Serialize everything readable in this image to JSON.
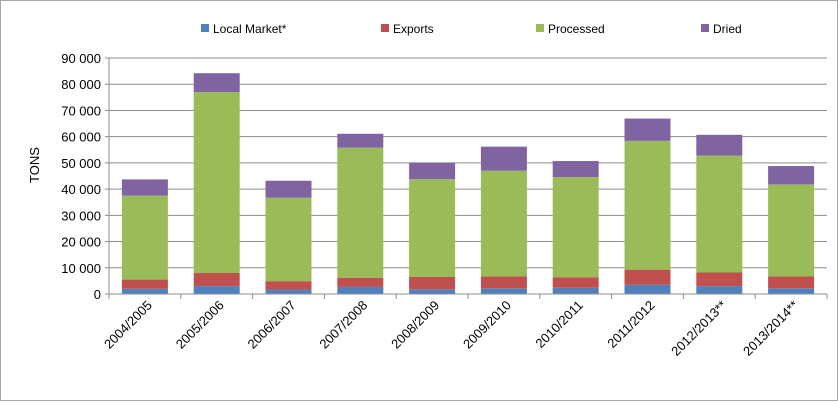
{
  "chart_data": {
    "type": "bar",
    "stacked": true,
    "ylabel": "TONS",
    "ylim": [
      0,
      90000
    ],
    "y_ticks": [
      "0",
      "10 000",
      "20 000",
      "30 000",
      "40 000",
      "50 000",
      "60 000",
      "70 000",
      "80 000",
      "90 000"
    ],
    "y_tick_values": [
      0,
      10000,
      20000,
      30000,
      40000,
      50000,
      60000,
      70000,
      80000,
      90000
    ],
    "grid": true,
    "legend_position": "top",
    "categories": [
      "2004/2005",
      "2005/2006",
      "2006/2007",
      "2007/2008",
      "2008/2009",
      "2009/2010",
      "2010/2011",
      "2011/2012",
      "2012/2013**",
      "2013/2014**"
    ],
    "series": [
      {
        "name": "Local Market*",
        "color": "#4f81bd",
        "values": [
          2000,
          3000,
          1700,
          2700,
          1800,
          2200,
          2400,
          3500,
          3000,
          2200
        ]
      },
      {
        "name": "Exports",
        "color": "#c0504d",
        "values": [
          3500,
          5000,
          3200,
          3500,
          4700,
          4500,
          4000,
          5800,
          5200,
          4500
        ]
      },
      {
        "name": "Processed",
        "color": "#9bbb59",
        "values": [
          32000,
          69000,
          31800,
          49600,
          37300,
          40300,
          38200,
          49100,
          44600,
          35100
        ]
      },
      {
        "name": "Dried",
        "color": "#8064a2",
        "values": [
          6200,
          7200,
          6500,
          5300,
          6200,
          9200,
          6100,
          8500,
          7900,
          7000
        ]
      }
    ]
  }
}
